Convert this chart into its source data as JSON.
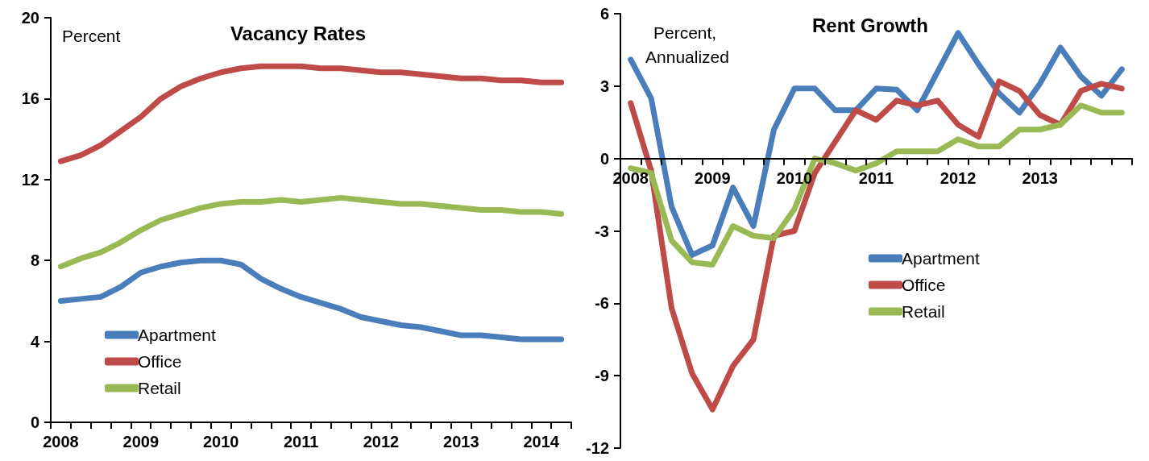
{
  "chart_data": [
    {
      "type": "line",
      "title": "Vacancy Rates",
      "ylabel": "Percent",
      "categories": [
        "2008",
        null,
        null,
        null,
        "2009",
        null,
        null,
        null,
        "2010",
        null,
        null,
        null,
        "2011",
        null,
        null,
        null,
        "2012",
        null,
        null,
        null,
        "2013",
        null,
        null,
        null,
        "2014",
        null
      ],
      "series": [
        {
          "name": "Apartment",
          "color": "#4a7ebb",
          "values": [
            6.0,
            6.1,
            6.2,
            6.7,
            7.4,
            7.7,
            7.9,
            8.0,
            8.0,
            7.8,
            7.1,
            6.6,
            6.2,
            5.9,
            5.6,
            5.2,
            5.0,
            4.8,
            4.7,
            4.5,
            4.3,
            4.3,
            4.2,
            4.1,
            4.1,
            4.1
          ]
        },
        {
          "name": "Office",
          "color": "#be4b48",
          "values": [
            12.9,
            13.2,
            13.7,
            14.4,
            15.1,
            16.0,
            16.6,
            17.0,
            17.3,
            17.5,
            17.6,
            17.6,
            17.6,
            17.5,
            17.5,
            17.4,
            17.3,
            17.3,
            17.2,
            17.1,
            17.0,
            17.0,
            16.9,
            16.9,
            16.8,
            16.8
          ]
        },
        {
          "name": "Retail",
          "color": "#98b954",
          "values": [
            7.7,
            8.1,
            8.4,
            8.9,
            9.5,
            10.0,
            10.3,
            10.6,
            10.8,
            10.9,
            10.9,
            11.0,
            10.9,
            11.0,
            11.1,
            11.0,
            10.9,
            10.8,
            10.8,
            10.7,
            10.6,
            10.5,
            10.5,
            10.4,
            10.4,
            10.3
          ]
        }
      ],
      "ylim": [
        0,
        20
      ],
      "yticks": [
        0,
        4,
        8,
        12,
        16,
        20
      ],
      "grid": false,
      "legend": "bottom left",
      "marker": "none",
      "line_style": "solid"
    },
    {
      "type": "line",
      "title": "Rent Growth",
      "ylabel": "Percent, Annualized",
      "categories": [
        "2008",
        null,
        null,
        null,
        "2009",
        null,
        null,
        null,
        "2010",
        null,
        null,
        null,
        "2011",
        null,
        null,
        null,
        "2012",
        null,
        null,
        null,
        "2013",
        null,
        null,
        null,
        null
      ],
      "series": [
        {
          "name": "Apartment",
          "color": "#4a7ebb",
          "values": [
            4.1,
            2.5,
            -2.0,
            -4.0,
            -3.6,
            -1.2,
            -2.8,
            1.2,
            2.9,
            2.9,
            2.0,
            2.0,
            2.9,
            2.85,
            2.0,
            3.6,
            5.2,
            3.9,
            2.7,
            1.9,
            3.1,
            4.6,
            3.4,
            2.6,
            3.7
          ]
        },
        {
          "name": "Office",
          "color": "#be4b48",
          "values": [
            2.3,
            -0.5,
            -6.2,
            -8.9,
            -10.4,
            -8.6,
            -7.5,
            -3.2,
            -3.0,
            -0.6,
            0.7,
            2.0,
            1.6,
            2.4,
            2.2,
            2.4,
            1.4,
            0.9,
            3.2,
            2.8,
            1.8,
            1.4,
            2.8,
            3.1,
            2.9
          ]
        },
        {
          "name": "Retail",
          "color": "#98b954",
          "values": [
            -0.4,
            -0.6,
            -3.4,
            -4.3,
            -4.4,
            -2.8,
            -3.2,
            -3.3,
            -2.1,
            0.0,
            -0.2,
            -0.5,
            -0.2,
            0.3,
            0.3,
            0.3,
            0.8,
            0.5,
            0.5,
            1.2,
            1.2,
            1.4,
            2.2,
            1.9,
            1.9
          ]
        }
      ],
      "ylim": [
        -12,
        6
      ],
      "yticks": [
        -12,
        -9,
        -6,
        -3,
        0,
        3,
        6
      ],
      "grid": false,
      "legend": "right",
      "marker": "none",
      "line_style": "solid"
    }
  ]
}
